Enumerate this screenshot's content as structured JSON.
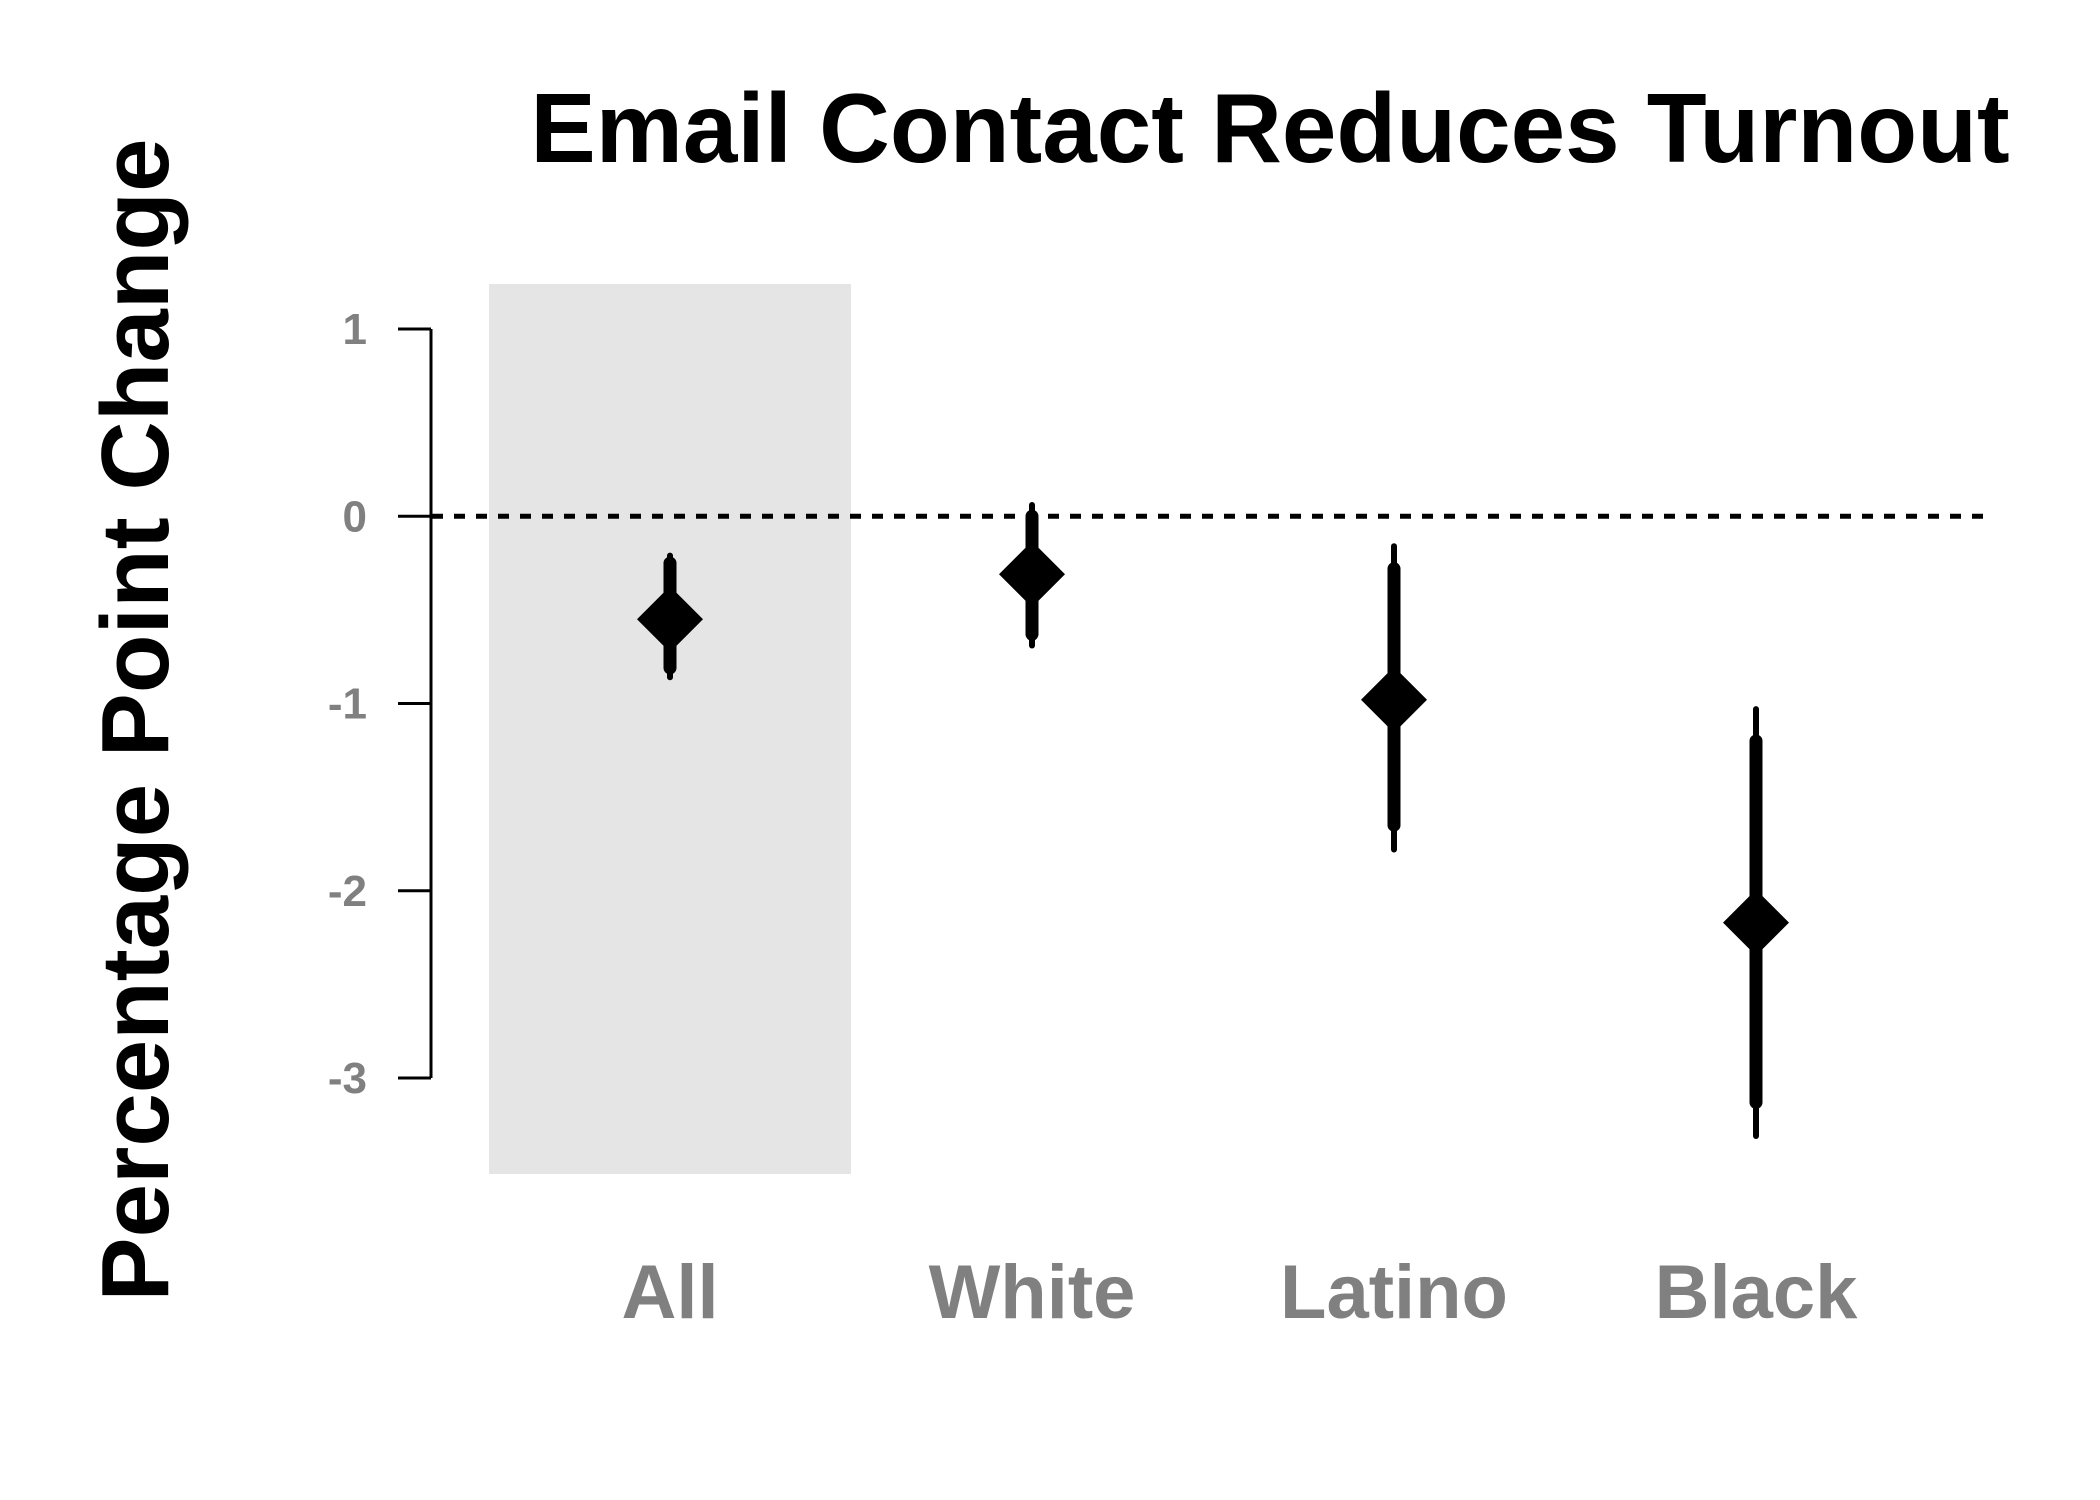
{
  "chart_data": {
    "type": "scatter",
    "title": "Email Contact Reduces Turnout",
    "ylabel": "Percentage Point Change",
    "xlabel": "",
    "categories": [
      "All",
      "White",
      "Latino",
      "Black"
    ],
    "highlighted_category": "All",
    "y_ticks": [
      "1",
      "0",
      "-1",
      "-2",
      "-3"
    ],
    "ylim": [
      -3,
      1
    ],
    "reference_line": 0,
    "grid": false,
    "legend": "none",
    "points": [
      {
        "category": "All",
        "estimate": -0.55,
        "ci90": [
          -0.81,
          -0.25
        ],
        "ci95": [
          -0.86,
          -0.21
        ]
      },
      {
        "category": "White",
        "estimate": -0.31,
        "ci90": [
          -0.63,
          0.0
        ],
        "ci95": [
          -0.69,
          0.06
        ]
      },
      {
        "category": "Latino",
        "estimate": -0.98,
        "ci90": [
          -1.65,
          -0.28
        ],
        "ci95": [
          -1.78,
          -0.16
        ]
      },
      {
        "category": "Black",
        "estimate": -2.17,
        "ci90": [
          -3.13,
          -1.2
        ],
        "ci95": [
          -3.31,
          -1.03
        ]
      }
    ],
    "colors": {
      "marker": "#000000",
      "tick_labels": "#808080",
      "highlight_band": "#e5e5e5"
    }
  }
}
